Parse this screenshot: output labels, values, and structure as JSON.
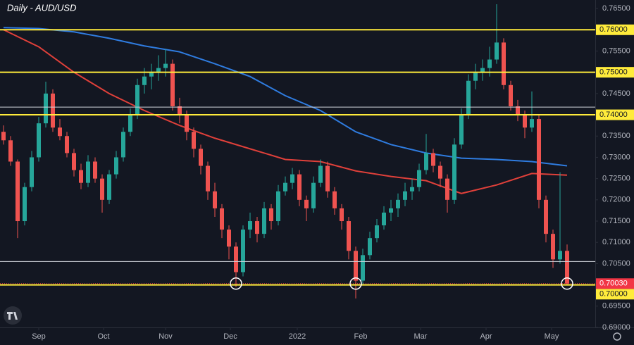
{
  "chart_data": {
    "type": "candlestick",
    "title": "Daily - AUD/USD",
    "up_color": "#26a69a",
    "down_color": "#ef5350",
    "xlim": [
      -0.5,
      84
    ],
    "ylim": [
      0.69,
      0.767
    ],
    "xticks": [
      {
        "value": 5,
        "label": "Sep"
      },
      {
        "value": 14.2,
        "label": "Oct"
      },
      {
        "value": 23,
        "label": "Nov"
      },
      {
        "value": 32.2,
        "label": "Dec"
      },
      {
        "value": 41.7,
        "label": "2022"
      },
      {
        "value": 50.7,
        "label": "Feb"
      },
      {
        "value": 59.2,
        "label": "Mar"
      },
      {
        "value": 68.5,
        "label": "Apr"
      },
      {
        "value": 77.8,
        "label": "May"
      }
    ],
    "yticks": [
      {
        "value": 0.765,
        "label": "0.76500"
      },
      {
        "value": 0.755,
        "label": "0.75500"
      },
      {
        "value": 0.745,
        "label": "0.74500"
      },
      {
        "value": 0.735,
        "label": "0.73500"
      },
      {
        "value": 0.73,
        "label": "0.73000"
      },
      {
        "value": 0.725,
        "label": "0.72500"
      },
      {
        "value": 0.72,
        "label": "0.72000"
      },
      {
        "value": 0.715,
        "label": "0.71500"
      },
      {
        "value": 0.71,
        "label": "0.71000"
      },
      {
        "value": 0.705,
        "label": "0.70500"
      },
      {
        "value": 0.695,
        "label": "0.69500"
      },
      {
        "value": 0.69,
        "label": "0.69000"
      }
    ],
    "ohlc": [
      [
        0.736,
        0.7375,
        0.733,
        0.734
      ],
      [
        0.734,
        0.735,
        0.728,
        0.729
      ],
      [
        0.729,
        0.7295,
        0.711,
        0.715
      ],
      [
        0.715,
        0.724,
        0.714,
        0.723
      ],
      [
        0.723,
        0.7315,
        0.722,
        0.73
      ],
      [
        0.73,
        0.7395,
        0.729,
        0.738
      ],
      [
        0.738,
        0.7478,
        0.737,
        0.745
      ],
      [
        0.745,
        0.746,
        0.736,
        0.737
      ],
      [
        0.737,
        0.739,
        0.734,
        0.735
      ],
      [
        0.735,
        0.736,
        0.73,
        0.731
      ],
      [
        0.731,
        0.732,
        0.7255,
        0.727
      ],
      [
        0.727,
        0.7285,
        0.7225,
        0.724
      ],
      [
        0.724,
        0.7305,
        0.723,
        0.729
      ],
      [
        0.729,
        0.73,
        0.724,
        0.725
      ],
      [
        0.725,
        0.726,
        0.717,
        0.72
      ],
      [
        0.72,
        0.727,
        0.719,
        0.726
      ],
      [
        0.726,
        0.7315,
        0.725,
        0.73
      ],
      [
        0.73,
        0.737,
        0.729,
        0.736
      ],
      [
        0.736,
        0.7415,
        0.735,
        0.74
      ],
      [
        0.74,
        0.7485,
        0.739,
        0.747
      ],
      [
        0.747,
        0.751,
        0.745,
        0.749
      ],
      [
        0.749,
        0.752,
        0.746,
        0.75
      ],
      [
        0.75,
        0.754,
        0.748,
        0.751
      ],
      [
        0.751,
        0.7555,
        0.749,
        0.752
      ],
      [
        0.752,
        0.753,
        0.741,
        0.742
      ],
      [
        0.742,
        0.744,
        0.738,
        0.74
      ],
      [
        0.74,
        0.741,
        0.734,
        0.736
      ],
      [
        0.736,
        0.737,
        0.73,
        0.732
      ],
      [
        0.732,
        0.733,
        0.726,
        0.728
      ],
      [
        0.728,
        0.729,
        0.72,
        0.722
      ],
      [
        0.722,
        0.724,
        0.716,
        0.718
      ],
      [
        0.718,
        0.719,
        0.711,
        0.713
      ],
      [
        0.713,
        0.714,
        0.706,
        0.709
      ],
      [
        0.709,
        0.71,
        0.6995,
        0.703
      ],
      [
        0.703,
        0.714,
        0.702,
        0.713
      ],
      [
        0.713,
        0.717,
        0.711,
        0.715
      ],
      [
        0.715,
        0.716,
        0.71,
        0.712
      ],
      [
        0.712,
        0.7195,
        0.711,
        0.718
      ],
      [
        0.718,
        0.719,
        0.713,
        0.715
      ],
      [
        0.715,
        0.7235,
        0.714,
        0.722
      ],
      [
        0.722,
        0.7255,
        0.721,
        0.724
      ],
      [
        0.724,
        0.7275,
        0.7225,
        0.726
      ],
      [
        0.726,
        0.727,
        0.7185,
        0.72
      ],
      [
        0.72,
        0.721,
        0.715,
        0.718
      ],
      [
        0.718,
        0.7255,
        0.717,
        0.724
      ],
      [
        0.724,
        0.7295,
        0.723,
        0.728
      ],
      [
        0.728,
        0.729,
        0.7205,
        0.722
      ],
      [
        0.722,
        0.723,
        0.7165,
        0.718
      ],
      [
        0.718,
        0.719,
        0.713,
        0.715
      ],
      [
        0.715,
        0.716,
        0.706,
        0.708
      ],
      [
        0.708,
        0.709,
        0.6968,
        0.701
      ],
      [
        0.701,
        0.7085,
        0.7,
        0.707
      ],
      [
        0.707,
        0.7125,
        0.706,
        0.711
      ],
      [
        0.711,
        0.7155,
        0.71,
        0.714
      ],
      [
        0.714,
        0.7185,
        0.713,
        0.717
      ],
      [
        0.717,
        0.72,
        0.715,
        0.718
      ],
      [
        0.718,
        0.7215,
        0.716,
        0.72
      ],
      [
        0.72,
        0.724,
        0.7185,
        0.722
      ],
      [
        0.722,
        0.725,
        0.72,
        0.723
      ],
      [
        0.723,
        0.7285,
        0.722,
        0.727
      ],
      [
        0.727,
        0.7355,
        0.726,
        0.731
      ],
      [
        0.731,
        0.732,
        0.7265,
        0.728
      ],
      [
        0.728,
        0.729,
        0.723,
        0.725
      ],
      [
        0.725,
        0.726,
        0.717,
        0.72
      ],
      [
        0.72,
        0.7345,
        0.719,
        0.733
      ],
      [
        0.733,
        0.7415,
        0.732,
        0.74
      ],
      [
        0.74,
        0.7495,
        0.739,
        0.748
      ],
      [
        0.748,
        0.752,
        0.746,
        0.75
      ],
      [
        0.75,
        0.753,
        0.748,
        0.751
      ],
      [
        0.751,
        0.756,
        0.749,
        0.753
      ],
      [
        0.753,
        0.766,
        0.752,
        0.757
      ],
      [
        0.757,
        0.758,
        0.746,
        0.747
      ],
      [
        0.747,
        0.748,
        0.741,
        0.742
      ],
      [
        0.742,
        0.7435,
        0.7385,
        0.74
      ],
      [
        0.74,
        0.741,
        0.7345,
        0.737
      ],
      [
        0.737,
        0.7455,
        0.736,
        0.739
      ],
      [
        0.739,
        0.74,
        0.718,
        0.72
      ],
      [
        0.72,
        0.721,
        0.71,
        0.712
      ],
      [
        0.712,
        0.713,
        0.704,
        0.706
      ],
      [
        0.706,
        0.7265,
        0.705,
        0.708
      ],
      [
        0.708,
        0.7095,
        0.7,
        0.7003
      ]
    ],
    "moving_averages": [
      {
        "color": "#2f7ce0",
        "x": [
          0,
          5,
          10,
          15,
          20,
          25,
          30,
          35,
          40,
          45,
          50,
          55,
          60,
          65,
          70,
          75,
          80
        ],
        "values": [
          0.7605,
          0.7603,
          0.7595,
          0.758,
          0.7562,
          0.7548,
          0.752,
          0.749,
          0.7445,
          0.741,
          0.736,
          0.733,
          0.731,
          0.7298,
          0.7295,
          0.729,
          0.728
        ]
      },
      {
        "color": "#e0403a",
        "x": [
          0,
          5,
          10,
          15,
          20,
          25,
          30,
          35,
          40,
          45,
          50,
          55,
          60,
          65,
          70,
          75,
          80
        ],
        "values": [
          0.76,
          0.756,
          0.75,
          0.745,
          0.741,
          0.7375,
          0.7345,
          0.732,
          0.7295,
          0.729,
          0.7268,
          0.7255,
          0.7245,
          0.7215,
          0.7235,
          0.7262,
          0.7258
        ]
      }
    ],
    "levels": [
      {
        "value": 0.76,
        "label": "0.76000",
        "color": "#ffeb3b",
        "width": 2
      },
      {
        "value": 0.75,
        "label": "0.75000",
        "color": "#ffeb3b",
        "width": 2
      },
      {
        "value": 0.74,
        "label": "0.74000",
        "color": "#ffeb3b",
        "width": 2
      },
      {
        "value": 0.7,
        "label": "0.70000",
        "color": "#ffeb3b",
        "width": 2
      },
      {
        "value": 0.7418,
        "color": "#d1d4dc",
        "width": 1
      },
      {
        "value": 0.7055,
        "color": "#d1d4dc",
        "width": 1
      }
    ],
    "last_price": {
      "value": 0.7003,
      "label": "0.70030",
      "color": "#f23645"
    },
    "circle_markers": [
      {
        "x": 33,
        "y": 0.7003
      },
      {
        "x": 50,
        "y": 0.7003
      },
      {
        "x": 80,
        "y": 0.7003
      }
    ]
  }
}
